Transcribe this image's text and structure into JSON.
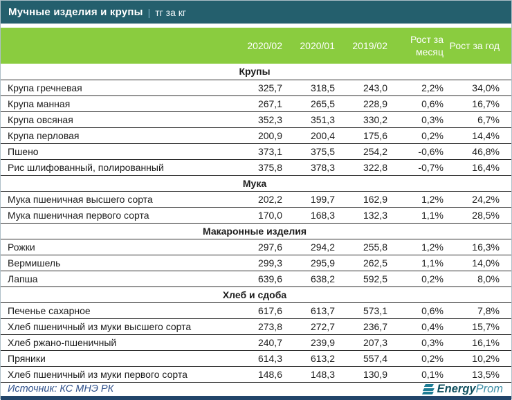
{
  "title": {
    "separator": "|"
  },
  "chart_data": {
    "type": "table",
    "title": "Мучные изделия и крупы",
    "unit": "тг за кг",
    "columns": [
      "2020/02",
      "2020/01",
      "2019/02",
      "Рост за месяц",
      "Рост за год"
    ],
    "sections": [
      {
        "name": "Крупы",
        "rows": [
          {
            "label": "Крупа гречневая",
            "values": [
              "325,7",
              "318,5",
              "243,0",
              "2,2%",
              "34,0%"
            ]
          },
          {
            "label": "Крупа манная",
            "values": [
              "267,1",
              "265,5",
              "228,9",
              "0,6%",
              "16,7%"
            ]
          },
          {
            "label": "Крупа овсяная",
            "values": [
              "352,3",
              "351,3",
              "330,2",
              "0,3%",
              "6,7%"
            ]
          },
          {
            "label": "Крупа перловая",
            "values": [
              "200,9",
              "200,4",
              "175,6",
              "0,2%",
              "14,4%"
            ]
          },
          {
            "label": "Пшено",
            "values": [
              "373,1",
              "375,5",
              "254,2",
              "-0,6%",
              "46,8%"
            ]
          },
          {
            "label": "Рис шлифованный, полированный",
            "values": [
              "375,8",
              "378,3",
              "322,8",
              "-0,7%",
              "16,4%"
            ]
          }
        ]
      },
      {
        "name": "Мука",
        "rows": [
          {
            "label": "Мука пшеничная высшего сорта",
            "values": [
              "202,2",
              "199,7",
              "162,9",
              "1,2%",
              "24,2%"
            ]
          },
          {
            "label": "Мука пшеничная первого сорта",
            "values": [
              "170,0",
              "168,3",
              "132,3",
              "1,1%",
              "28,5%"
            ]
          }
        ]
      },
      {
        "name": "Макаронные изделия",
        "rows": [
          {
            "label": "Рожки",
            "values": [
              "297,6",
              "294,2",
              "255,8",
              "1,2%",
              "16,3%"
            ]
          },
          {
            "label": "Вермишель",
            "values": [
              "299,3",
              "295,9",
              "262,5",
              "1,1%",
              "14,0%"
            ]
          },
          {
            "label": "Лапша",
            "values": [
              "639,6",
              "638,2",
              "592,5",
              "0,2%",
              "8,0%"
            ]
          }
        ]
      },
      {
        "name": "Хлеб и сдоба",
        "rows": [
          {
            "label": "Печенье сахарное",
            "values": [
              "617,6",
              "613,7",
              "573,1",
              "0,6%",
              "7,8%"
            ]
          },
          {
            "label": "Хлеб пшеничный из муки высшего сорта",
            "values": [
              "273,8",
              "272,7",
              "236,7",
              "0,4%",
              "15,7%"
            ]
          },
          {
            "label": "Хлеб ржано-пшеничный",
            "values": [
              "240,7",
              "239,9",
              "207,3",
              "0,3%",
              "16,1%"
            ]
          },
          {
            "label": "Пряники",
            "values": [
              "614,3",
              "613,2",
              "557,4",
              "0,2%",
              "10,2%"
            ]
          },
          {
            "label": "Хлеб пшеничный из муки первого сорта",
            "values": [
              "148,6",
              "148,3",
              "130,9",
              "0,1%",
              "13,5%"
            ]
          }
        ]
      }
    ]
  },
  "footer": {
    "source": "Источник: КС МНЭ РК",
    "logo": {
      "bold": "Energy",
      "light": "Prom"
    }
  },
  "colors": {
    "titlebar_bg": "#245f6d",
    "column_header_bg": "#8acc3f",
    "column_header_text": "#ffffff",
    "row_border": "#2a2a2a",
    "source_text": "#30518c",
    "logo_icon": "#1f7d95",
    "logo_bold_text": "#10505f",
    "logo_light_text": "#4090a8",
    "bottom_bar": "#22456a"
  }
}
